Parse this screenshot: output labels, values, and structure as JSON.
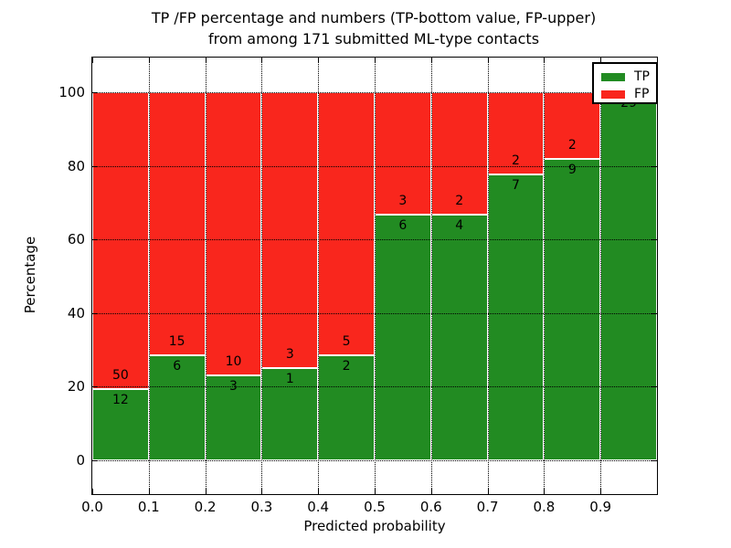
{
  "figure": {
    "title_line1": "TP /FP percentage and numbers (TP-bottom value, FP-upper)",
    "title_line2": "from among 171 submitted ML-type contacts"
  },
  "axes": {
    "xlabel": "Predicted probability",
    "ylabel": "Percentage",
    "x_tick_labels": [
      "0.0",
      "0.1",
      "0.2",
      "0.3",
      "0.4",
      "0.5",
      "0.6",
      "0.7",
      "0.8",
      "0.9"
    ],
    "y_tick_labels": [
      "0",
      "20",
      "40",
      "60",
      "80",
      "100"
    ],
    "y_tick_values": [
      0,
      20,
      40,
      60,
      80,
      100
    ],
    "x_range": [
      0.0,
      1.0
    ],
    "grid": "dotted black, horizontal every 20%, vertical every 0.1"
  },
  "legend": {
    "position": "upper-right",
    "entries": [
      {
        "label": "TP",
        "color": "#228b22"
      },
      {
        "label": "FP",
        "color": "#f9261d"
      }
    ]
  },
  "chart_data": {
    "type": "bar",
    "stacked": true,
    "normalization": "each bin scaled to 100%",
    "title": "TP /FP percentage and numbers (TP-bottom value, FP-upper) from among 171 submitted ML-type contacts",
    "xlabel": "Predicted probability",
    "ylabel": "Percentage",
    "ylim": [
      0,
      100
    ],
    "total_contacts": 171,
    "bin_edges": [
      0.0,
      0.1,
      0.2,
      0.3,
      0.4,
      0.5,
      0.6,
      0.7,
      0.8,
      0.9,
      1.0
    ],
    "categories": [
      "0.0-0.1",
      "0.1-0.2",
      "0.2-0.3",
      "0.3-0.4",
      "0.4-0.5",
      "0.5-0.6",
      "0.6-0.7",
      "0.7-0.8",
      "0.8-0.9",
      "0.9-1.0"
    ],
    "series": [
      {
        "name": "TP",
        "color": "#228b22",
        "counts": [
          12,
          6,
          3,
          1,
          2,
          6,
          4,
          7,
          9,
          29
        ]
      },
      {
        "name": "FP",
        "color": "#f9261d",
        "counts": [
          50,
          15,
          10,
          3,
          5,
          3,
          2,
          2,
          2,
          0
        ]
      }
    ],
    "tp_percentages": [
      19.35,
      28.57,
      23.08,
      25.0,
      28.57,
      66.67,
      66.67,
      77.78,
      81.82,
      100.0
    ]
  }
}
